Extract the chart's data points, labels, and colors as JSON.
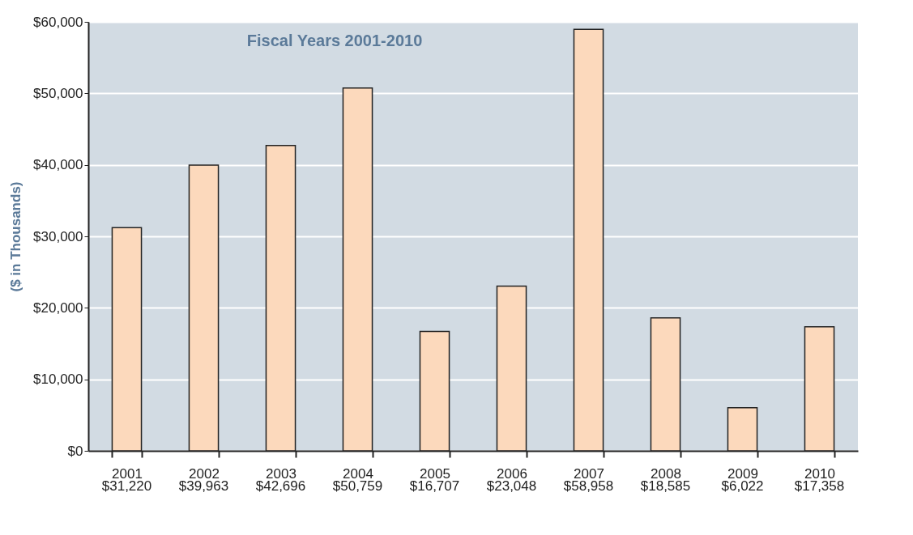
{
  "chart_data": {
    "type": "bar",
    "subtitle": "Fiscal Years 2001-2010",
    "ylabel": "($ in Thousands)",
    "categories": [
      "2001",
      "2002",
      "2003",
      "2004",
      "2005",
      "2006",
      "2007",
      "2008",
      "2009",
      "2010"
    ],
    "values": [
      31220,
      39963,
      42696,
      50759,
      16707,
      23048,
      58958,
      18585,
      6022,
      17358
    ],
    "value_labels": [
      "$31,220",
      "$39,963",
      "$42,696",
      "$50,759",
      "$16,707",
      "$23,048",
      "$58,958",
      "$18,585",
      "$6,022",
      "$17,358"
    ],
    "color": "#fcd9bc",
    "ylim": [
      0,
      60000
    ],
    "yticks": [
      {
        "value": 0,
        "label": "$0"
      },
      {
        "value": 10000,
        "label": "$10,000"
      },
      {
        "value": 20000,
        "label": "$20,000"
      },
      {
        "value": 30000,
        "label": "$30,000"
      },
      {
        "value": 40000,
        "label": "$40,000"
      },
      {
        "value": 50000,
        "label": "$50,000"
      },
      {
        "value": 60000,
        "label": "$60,000"
      }
    ],
    "grid": "y"
  }
}
